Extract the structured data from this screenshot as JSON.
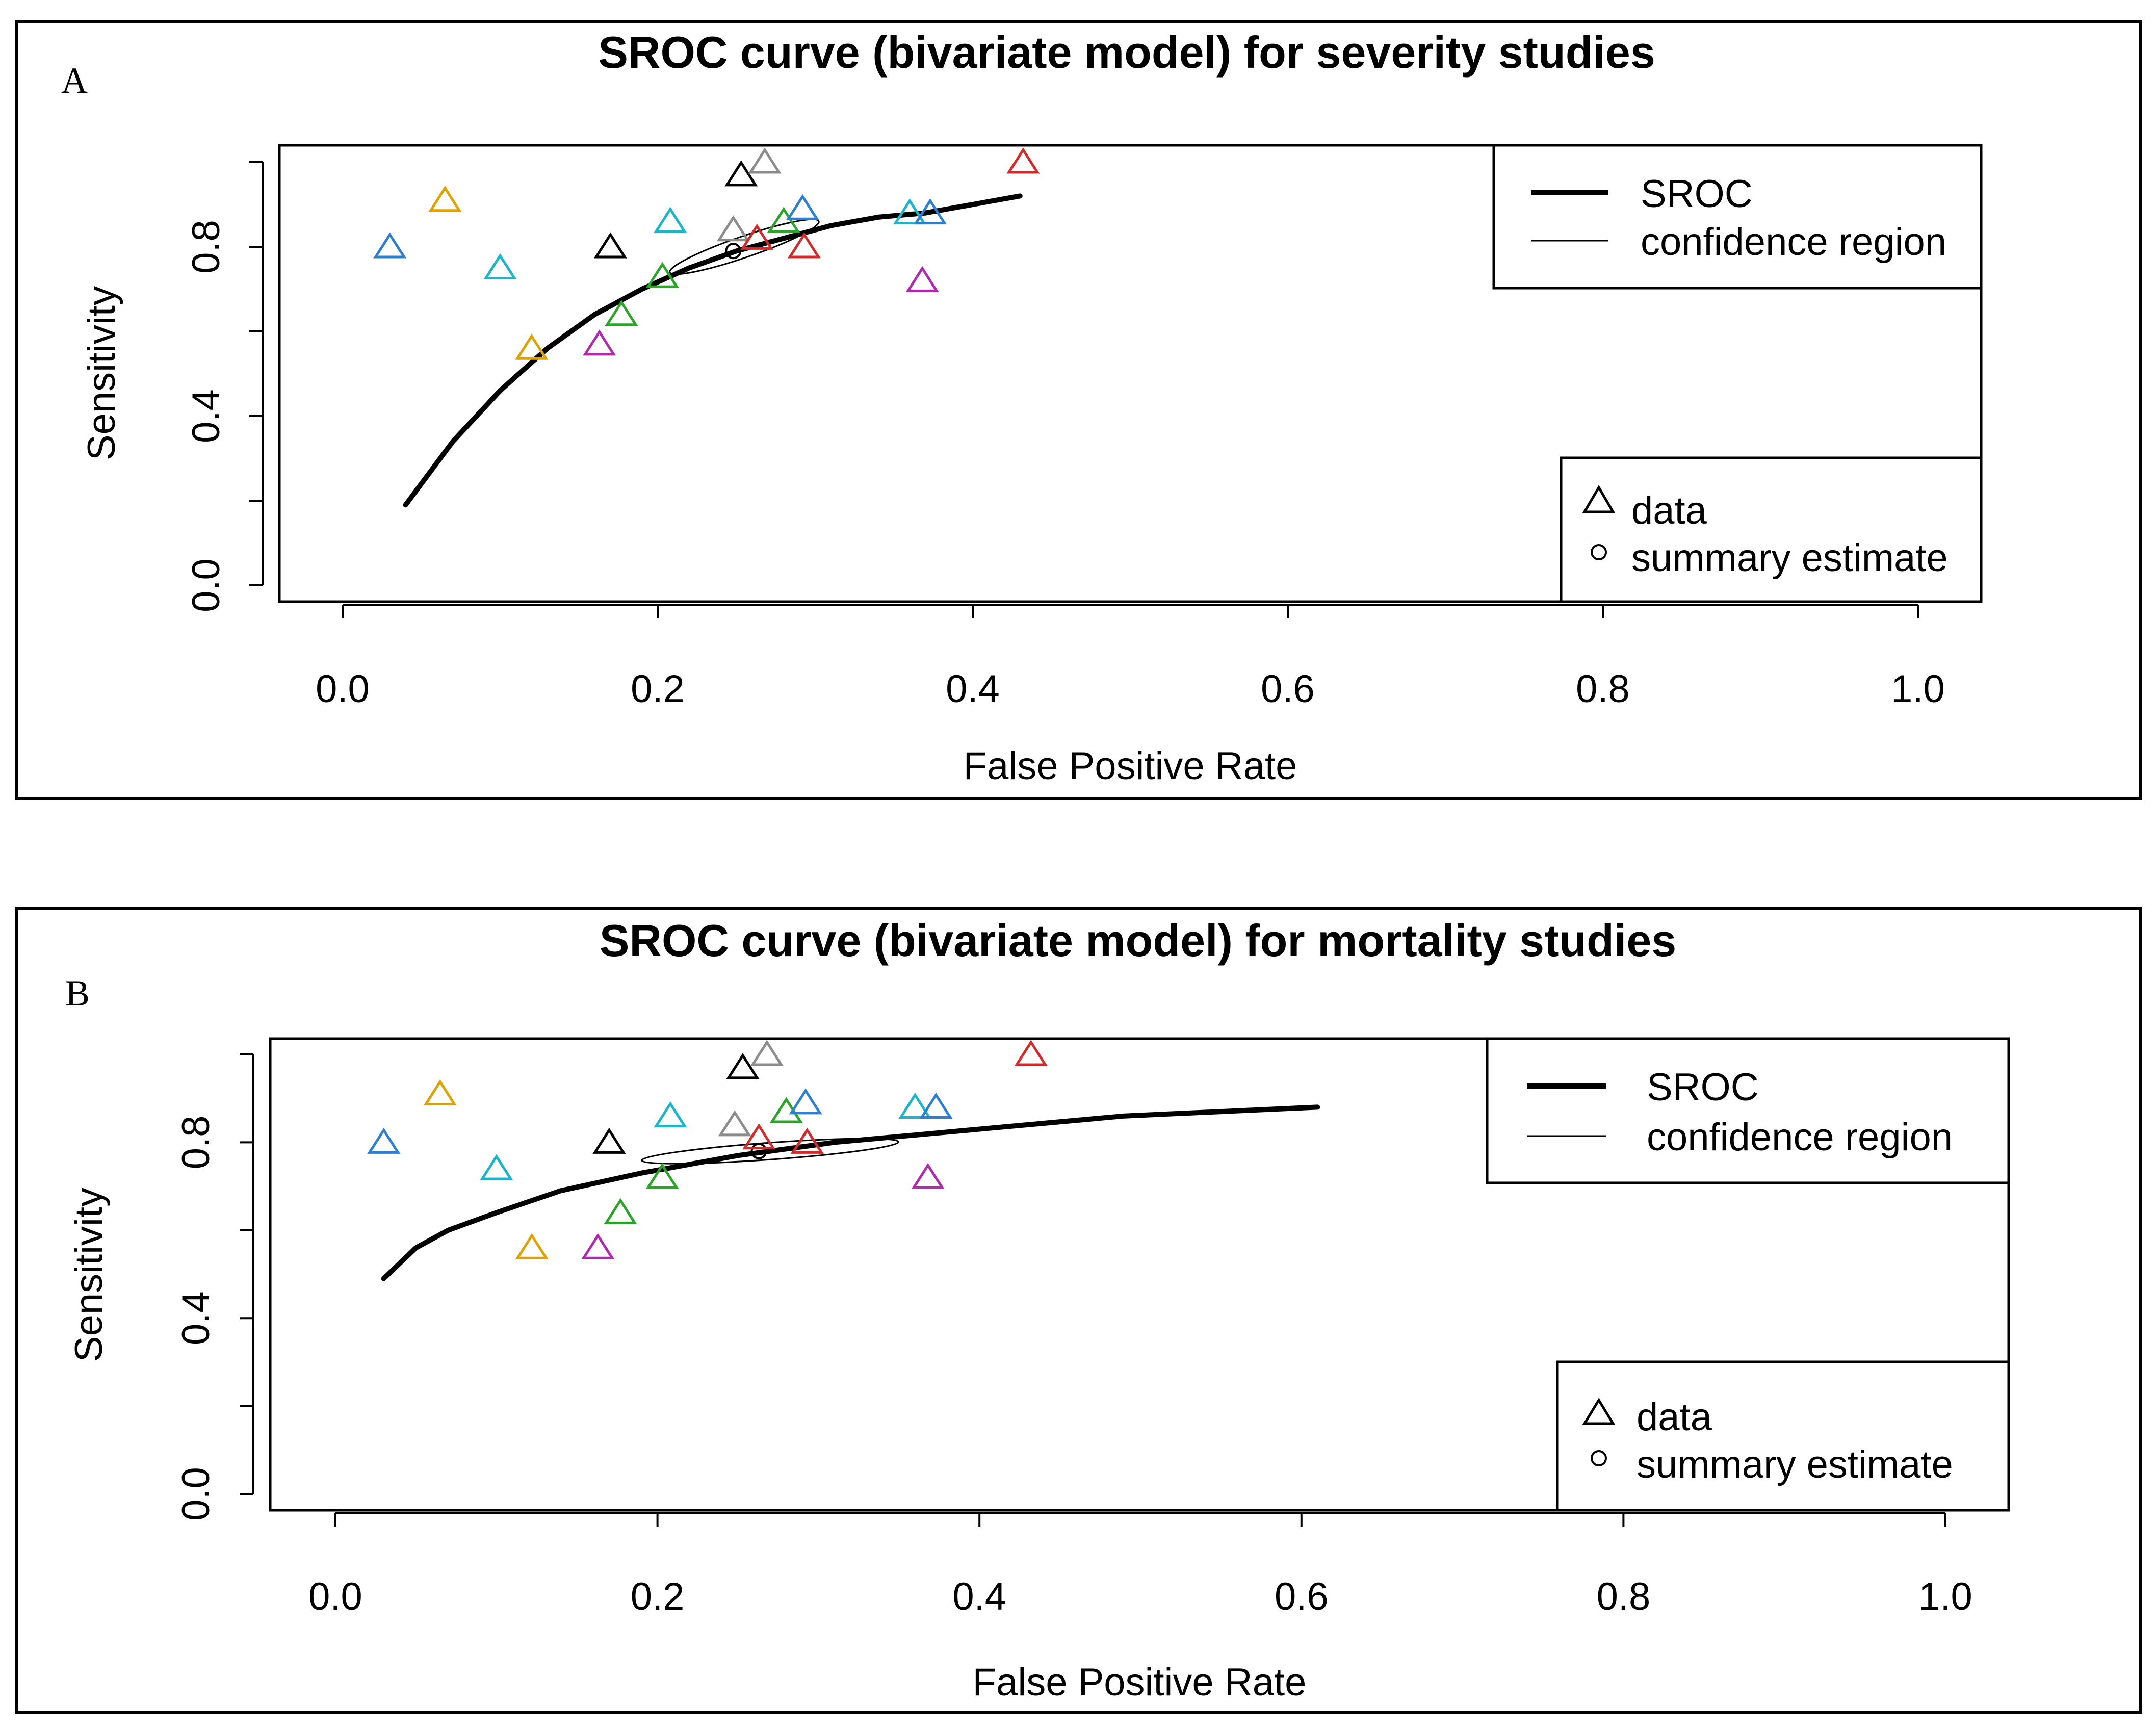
{
  "chart_data": [
    {
      "type": "scatter",
      "panel": "A",
      "title": "SROC curve (bivariate model) for severity studies",
      "xlabel": "False Positive Rate",
      "ylabel": "Sensitivity",
      "xlim": [
        0,
        1
      ],
      "ylim": [
        0,
        1
      ],
      "xticks": [
        "0.0",
        "0.2",
        "0.4",
        "0.6",
        "0.8",
        "1.0"
      ],
      "yticks": [
        "0.0",
        "0.4",
        "0.8"
      ],
      "legend_lines": [
        "SROC",
        "confidence region"
      ],
      "legend_points": [
        "data",
        "summary estimate"
      ],
      "sroc": {
        "x": [
          0.04,
          0.07,
          0.1,
          0.13,
          0.16,
          0.19,
          0.22,
          0.25,
          0.28,
          0.31,
          0.34,
          0.37,
          0.4,
          0.43
        ],
        "y": [
          0.19,
          0.34,
          0.46,
          0.56,
          0.64,
          0.7,
          0.75,
          0.79,
          0.82,
          0.85,
          0.87,
          0.88,
          0.9,
          0.92
        ]
      },
      "summary": {
        "x": 0.248,
        "y": 0.79
      },
      "confidence_region": {
        "cx": 0.255,
        "cy": 0.8,
        "rx": 0.05,
        "ry": 0.065,
        "angle": -0.55
      },
      "points": [
        {
          "x": 0.03,
          "y": 0.8,
          "color": "#2d7fd2"
        },
        {
          "x": 0.065,
          "y": 0.91,
          "color": "#e0a200"
        },
        {
          "x": 0.1,
          "y": 0.75,
          "color": "#1bb5c9"
        },
        {
          "x": 0.12,
          "y": 0.56,
          "color": "#e0a200"
        },
        {
          "x": 0.163,
          "y": 0.57,
          "color": "#b02ab0"
        },
        {
          "x": 0.17,
          "y": 0.8,
          "color": "#000000"
        },
        {
          "x": 0.177,
          "y": 0.64,
          "color": "#2aa52a"
        },
        {
          "x": 0.203,
          "y": 0.73,
          "color": "#2aa52a"
        },
        {
          "x": 0.208,
          "y": 0.86,
          "color": "#1bb5c9"
        },
        {
          "x": 0.248,
          "y": 0.84,
          "color": "#8c8c8c"
        },
        {
          "x": 0.253,
          "y": 0.97,
          "color": "#000000"
        },
        {
          "x": 0.268,
          "y": 1.0,
          "color": "#8c8c8c"
        },
        {
          "x": 0.263,
          "y": 0.82,
          "color": "#d42a2a"
        },
        {
          "x": 0.28,
          "y": 0.86,
          "color": "#2aa52a"
        },
        {
          "x": 0.292,
          "y": 0.89,
          "color": "#2d7fd2"
        },
        {
          "x": 0.293,
          "y": 0.8,
          "color": "#d42a2a"
        },
        {
          "x": 0.36,
          "y": 0.88,
          "color": "#1bb5c9"
        },
        {
          "x": 0.373,
          "y": 0.88,
          "color": "#2d7fd2"
        },
        {
          "x": 0.368,
          "y": 0.72,
          "color": "#b02ab0"
        },
        {
          "x": 0.432,
          "y": 1.0,
          "color": "#d42a2a"
        }
      ]
    },
    {
      "type": "scatter",
      "panel": "B",
      "title": "SROC curve (bivariate model) for mortality studies",
      "xlabel": "False Positive Rate",
      "ylabel": "Sensitivity",
      "xlim": [
        0,
        1
      ],
      "ylim": [
        0,
        1
      ],
      "xticks": [
        "0.0",
        "0.2",
        "0.4",
        "0.6",
        "0.8",
        "1.0"
      ],
      "yticks": [
        "0.0",
        "0.4",
        "0.8"
      ],
      "legend_lines": [
        "SROC",
        "confidence region"
      ],
      "legend_points": [
        "data",
        "summary estimate"
      ],
      "sroc": {
        "x": [
          0.03,
          0.05,
          0.07,
          0.1,
          0.14,
          0.19,
          0.25,
          0.31,
          0.37,
          0.43,
          0.49,
          0.55,
          0.61
        ],
        "y": [
          0.49,
          0.56,
          0.6,
          0.64,
          0.69,
          0.73,
          0.77,
          0.8,
          0.82,
          0.84,
          0.86,
          0.87,
          0.88
        ]
      },
      "summary": {
        "x": 0.263,
        "y": 0.78
      },
      "confidence_region": {
        "cx": 0.27,
        "cy": 0.78,
        "rx": 0.08,
        "ry": 0.05,
        "angle": -0.12
      },
      "points": [
        {
          "x": 0.03,
          "y": 0.8,
          "color": "#2d7fd2"
        },
        {
          "x": 0.065,
          "y": 0.91,
          "color": "#e0a200"
        },
        {
          "x": 0.1,
          "y": 0.74,
          "color": "#1bb5c9"
        },
        {
          "x": 0.122,
          "y": 0.56,
          "color": "#e0a200"
        },
        {
          "x": 0.163,
          "y": 0.56,
          "color": "#b02ab0"
        },
        {
          "x": 0.17,
          "y": 0.8,
          "color": "#000000"
        },
        {
          "x": 0.177,
          "y": 0.64,
          "color": "#2aa52a"
        },
        {
          "x": 0.203,
          "y": 0.72,
          "color": "#2aa52a"
        },
        {
          "x": 0.208,
          "y": 0.86,
          "color": "#1bb5c9"
        },
        {
          "x": 0.248,
          "y": 0.84,
          "color": "#8c8c8c"
        },
        {
          "x": 0.253,
          "y": 0.97,
          "color": "#000000"
        },
        {
          "x": 0.268,
          "y": 1.0,
          "color": "#8c8c8c"
        },
        {
          "x": 0.263,
          "y": 0.81,
          "color": "#d42a2a"
        },
        {
          "x": 0.28,
          "y": 0.87,
          "color": "#2aa52a"
        },
        {
          "x": 0.292,
          "y": 0.89,
          "color": "#2d7fd2"
        },
        {
          "x": 0.293,
          "y": 0.8,
          "color": "#d42a2a"
        },
        {
          "x": 0.36,
          "y": 0.88,
          "color": "#1bb5c9"
        },
        {
          "x": 0.373,
          "y": 0.88,
          "color": "#2d7fd2"
        },
        {
          "x": 0.368,
          "y": 0.72,
          "color": "#b02ab0"
        },
        {
          "x": 0.432,
          "y": 1.0,
          "color": "#d42a2a"
        }
      ]
    }
  ]
}
